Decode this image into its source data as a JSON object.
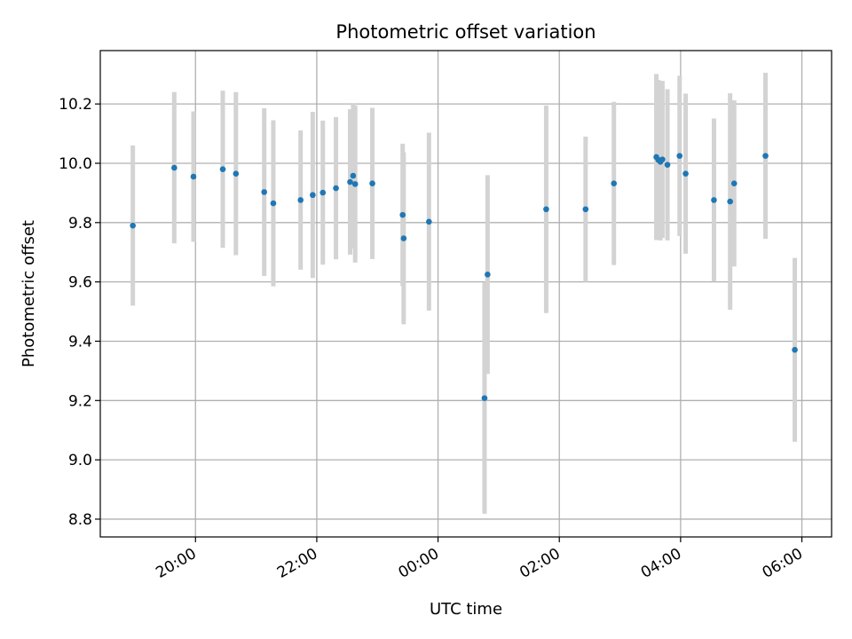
{
  "chart_data": {
    "type": "scatter",
    "title": "Photometric offset variation",
    "xlabel": "UTC time",
    "ylabel": "Photometric offset",
    "x_tick_labels": [
      "20:00",
      "22:00",
      "00:00",
      "02:00",
      "04:00",
      "06:00"
    ],
    "x_ticks_hours": [
      20,
      22,
      24,
      26,
      28,
      30
    ],
    "xlim_hours": [
      18.43,
      30.49
    ],
    "y_ticks": [
      8.8,
      9.0,
      9.2,
      9.4,
      9.6,
      9.8,
      10.0,
      10.2
    ],
    "ylim": [
      8.74,
      10.38
    ],
    "grid": true,
    "colors": {
      "point": "#1f77b4",
      "errorbar": "#d3d3d3",
      "grid": "#b0b0b0"
    },
    "points": [
      {
        "t": "18:58",
        "y": 9.79,
        "err": 0.27
      },
      {
        "t": "19:39",
        "y": 9.985,
        "err": 0.255
      },
      {
        "t": "19:58",
        "y": 9.955,
        "err": 0.22
      },
      {
        "t": "20:27",
        "y": 9.98,
        "err": 0.265
      },
      {
        "t": "20:40",
        "y": 9.965,
        "err": 0.275
      },
      {
        "t": "21:08",
        "y": 9.903,
        "err": 0.283
      },
      {
        "t": "21:17",
        "y": 9.865,
        "err": 0.28
      },
      {
        "t": "21:44",
        "y": 9.876,
        "err": 0.235
      },
      {
        "t": "21:56",
        "y": 9.893,
        "err": 0.28
      },
      {
        "t": "22:06",
        "y": 9.901,
        "err": 0.243
      },
      {
        "t": "22:19",
        "y": 9.916,
        "err": 0.24
      },
      {
        "t": "22:33",
        "y": 9.937,
        "err": 0.245
      },
      {
        "t": "22:36",
        "y": 9.958,
        "err": 0.245
      },
      {
        "t": "22:38",
        "y": 9.93,
        "err": 0.265
      },
      {
        "t": "22:55",
        "y": 9.932,
        "err": 0.255
      },
      {
        "t": "23:25",
        "y": 9.826,
        "err": 0.24
      },
      {
        "t": "23:26",
        "y": 9.747,
        "err": 0.29
      },
      {
        "t": "23:51",
        "y": 9.803,
        "err": 0.3
      },
      {
        "t": "00:46",
        "y": 9.208,
        "err": 0.39
      },
      {
        "t": "00:49",
        "y": 9.625,
        "err": 0.335
      },
      {
        "t": "01:47",
        "y": 9.845,
        "err": 0.35
      },
      {
        "t": "02:26",
        "y": 9.845,
        "err": 0.245
      },
      {
        "t": "02:54",
        "y": 9.932,
        "err": 0.275
      },
      {
        "t": "03:36",
        "y": 10.021,
        "err": 0.28
      },
      {
        "t": "03:38",
        "y": 10.011,
        "err": 0.27
      },
      {
        "t": "03:40",
        "y": 10.005,
        "err": 0.265
      },
      {
        "t": "03:42",
        "y": 10.013,
        "err": 0.265
      },
      {
        "t": "03:47",
        "y": 9.995,
        "err": 0.255
      },
      {
        "t": "03:59",
        "y": 10.025,
        "err": 0.27
      },
      {
        "t": "04:05",
        "y": 9.965,
        "err": 0.27
      },
      {
        "t": "04:33",
        "y": 9.876,
        "err": 0.275
      },
      {
        "t": "04:49",
        "y": 9.871,
        "err": 0.365
      },
      {
        "t": "04:53",
        "y": 9.932,
        "err": 0.28
      },
      {
        "t": "05:24",
        "y": 10.025,
        "err": 0.28
      },
      {
        "t": "05:53",
        "y": 9.371,
        "err": 0.31
      }
    ]
  }
}
